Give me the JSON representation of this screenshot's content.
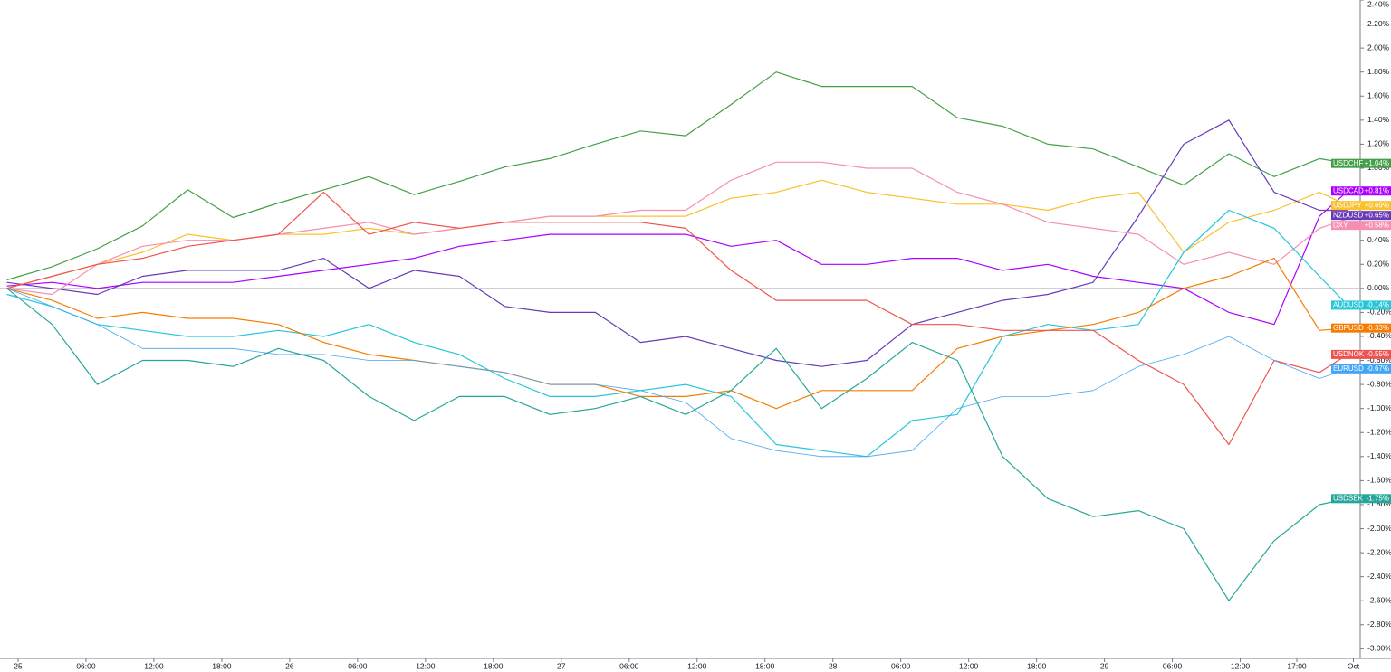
{
  "chart_data": {
    "type": "line",
    "x": [
      -1,
      3,
      7,
      11,
      15,
      19,
      23,
      27,
      31,
      35,
      39,
      43,
      47,
      51,
      55,
      59,
      63,
      67,
      71,
      75,
      79,
      83,
      87,
      91,
      95,
      99,
      103,
      107,
      111,
      115,
      117.5
    ],
    "xlim": [
      -1.6,
      118.6
    ],
    "xticks": [
      {
        "value": 0,
        "label": "25"
      },
      {
        "value": 6,
        "label": "06:00"
      },
      {
        "value": 12,
        "label": "12:00"
      },
      {
        "value": 18,
        "label": "18:00"
      },
      {
        "value": 24,
        "label": "26"
      },
      {
        "value": 30,
        "label": "06:00"
      },
      {
        "value": 36,
        "label": "12:00"
      },
      {
        "value": 42,
        "label": "18:00"
      },
      {
        "value": 48,
        "label": "27"
      },
      {
        "value": 54,
        "label": "06:00"
      },
      {
        "value": 60,
        "label": "12:00"
      },
      {
        "value": 66,
        "label": "18:00"
      },
      {
        "value": 72,
        "label": "28"
      },
      {
        "value": 78,
        "label": "06:00"
      },
      {
        "value": 84,
        "label": "12:00"
      },
      {
        "value": 90,
        "label": "18:00"
      },
      {
        "value": 96,
        "label": "29"
      },
      {
        "value": 102,
        "label": "06:00"
      },
      {
        "value": 108,
        "label": "12:00"
      },
      {
        "value": 113,
        "label": "17:00"
      },
      {
        "value": 118,
        "label": "Oct"
      }
    ],
    "ylim": [
      -3.08,
      2.4
    ],
    "yticks": [
      {
        "value": 2.4,
        "label": "2.40%"
      },
      {
        "value": 2.2,
        "label": "2.20%"
      },
      {
        "value": 2.0,
        "label": "2.00%"
      },
      {
        "value": 1.8,
        "label": "1.80%"
      },
      {
        "value": 1.6,
        "label": "1.60%"
      },
      {
        "value": 1.4,
        "label": "1.40%"
      },
      {
        "value": 1.2,
        "label": "1.20%"
      },
      {
        "value": 1.0,
        "label": "1.00%"
      },
      {
        "value": 0.8,
        "label": "0.80%"
      },
      {
        "value": 0.6,
        "label": "0.60%"
      },
      {
        "value": 0.4,
        "label": "0.40%"
      },
      {
        "value": 0.2,
        "label": "0.20%"
      },
      {
        "value": 0,
        "label": "0.00%"
      },
      {
        "value": -0.2,
        "label": "-0.20%"
      },
      {
        "value": -0.4,
        "label": "-0.40%"
      },
      {
        "value": -0.6,
        "label": "-0.60%"
      },
      {
        "value": -0.8,
        "label": "-0.80%"
      },
      {
        "value": -1.0,
        "label": "-1.00%"
      },
      {
        "value": -1.2,
        "label": "-1.20%"
      },
      {
        "value": -1.4,
        "label": "-1.40%"
      },
      {
        "value": -1.6,
        "label": "-1.60%"
      },
      {
        "value": -1.8,
        "label": "-1.80%"
      },
      {
        "value": -2.0,
        "label": "-2.00%"
      },
      {
        "value": -2.2,
        "label": "-2.20%"
      },
      {
        "value": -2.4,
        "label": "-2.40%"
      },
      {
        "value": -2.6,
        "label": "-2.60%"
      },
      {
        "value": -2.8,
        "label": "-2.80%"
      },
      {
        "value": -3.0,
        "label": "-3.00%"
      }
    ],
    "series": [
      {
        "name": "USDCHF",
        "color": "#43a047",
        "values": [
          0.07,
          0.18,
          0.33,
          0.52,
          0.82,
          0.59,
          0.71,
          0.82,
          0.93,
          0.78,
          0.89,
          1.01,
          1.08,
          1.2,
          1.31,
          1.27,
          1.53,
          1.8,
          1.68,
          1.68,
          1.68,
          1.42,
          1.35,
          1.2,
          1.16,
          1.01,
          0.86,
          1.12,
          0.93,
          1.08,
          1.04
        ],
        "value_labels": [
          null,
          null,
          null,
          null,
          null,
          null,
          null,
          null,
          null,
          null,
          null,
          null,
          null,
          null,
          null,
          null,
          null,
          null,
          null,
          null,
          null,
          null,
          null,
          null,
          null,
          null,
          null,
          null,
          null,
          null,
          "+1.04%"
        ]
      },
      {
        "name": "USDCAD",
        "color": "#aa00ff",
        "values": [
          0.02,
          0.05,
          0.0,
          0.05,
          0.05,
          0.05,
          0.1,
          0.15,
          0.2,
          0.25,
          0.35,
          0.4,
          0.45,
          0.45,
          0.45,
          0.45,
          0.35,
          0.4,
          0.2,
          0.2,
          0.25,
          0.25,
          0.15,
          0.2,
          0.1,
          0.05,
          0.0,
          -0.2,
          -0.3,
          0.6,
          0.81
        ],
        "value_labels": [
          null,
          null,
          null,
          null,
          null,
          null,
          null,
          null,
          null,
          null,
          null,
          null,
          null,
          null,
          null,
          null,
          null,
          null,
          null,
          null,
          null,
          null,
          null,
          null,
          null,
          null,
          null,
          null,
          null,
          null,
          "+0.81%"
        ]
      },
      {
        "name": "USDJPY",
        "color": "#fbc02d",
        "values": [
          0.0,
          0.1,
          0.2,
          0.3,
          0.45,
          0.4,
          0.45,
          0.45,
          0.5,
          0.45,
          0.5,
          0.55,
          0.6,
          0.6,
          0.6,
          0.6,
          0.75,
          0.8,
          0.9,
          0.8,
          0.75,
          0.7,
          0.7,
          0.65,
          0.75,
          0.8,
          0.3,
          0.55,
          0.65,
          0.8,
          0.69
        ],
        "value_labels": [
          null,
          null,
          null,
          null,
          null,
          null,
          null,
          null,
          null,
          null,
          null,
          null,
          null,
          null,
          null,
          null,
          null,
          null,
          null,
          null,
          null,
          null,
          null,
          null,
          null,
          null,
          null,
          null,
          null,
          null,
          "+0.69%"
        ]
      },
      {
        "name": "NZDUSD",
        "color": "#673ab7",
        "values": [
          0.05,
          0.0,
          -0.05,
          0.1,
          0.15,
          0.15,
          0.15,
          0.25,
          0.0,
          0.15,
          0.1,
          -0.15,
          -0.2,
          -0.2,
          -0.45,
          -0.4,
          -0.5,
          -0.6,
          -0.65,
          -0.6,
          -0.3,
          -0.2,
          -0.1,
          -0.05,
          0.05,
          0.6,
          1.2,
          1.4,
          0.8,
          0.65,
          0.65
        ],
        "value_labels": [
          null,
          null,
          null,
          null,
          null,
          null,
          null,
          null,
          null,
          null,
          null,
          null,
          null,
          null,
          null,
          null,
          null,
          null,
          null,
          null,
          null,
          null,
          null,
          null,
          null,
          null,
          null,
          null,
          null,
          null,
          "+0.65%"
        ]
      },
      {
        "name": "DXY",
        "color": "#f48fb1",
        "values": [
          0.0,
          -0.05,
          0.2,
          0.35,
          0.4,
          0.4,
          0.45,
          0.5,
          0.55,
          0.45,
          0.5,
          0.55,
          0.6,
          0.6,
          0.65,
          0.65,
          0.9,
          1.05,
          1.05,
          1.0,
          1.0,
          0.8,
          0.7,
          0.55,
          0.5,
          0.45,
          0.2,
          0.3,
          0.2,
          0.5,
          0.58
        ],
        "value_labels": [
          null,
          null,
          null,
          null,
          null,
          null,
          null,
          null,
          null,
          null,
          null,
          null,
          null,
          null,
          null,
          null,
          null,
          null,
          null,
          null,
          null,
          null,
          null,
          null,
          null,
          null,
          null,
          null,
          null,
          null,
          "+0.58%"
        ]
      },
      {
        "name": "AUDUSD",
        "color": "#26c6da",
        "values": [
          -0.05,
          -0.15,
          -0.3,
          -0.35,
          -0.4,
          -0.4,
          -0.35,
          -0.4,
          -0.3,
          -0.45,
          -0.55,
          -0.75,
          -0.9,
          -0.9,
          -0.85,
          -0.8,
          -0.9,
          -1.3,
          -1.35,
          -1.4,
          -1.1,
          -1.05,
          -0.4,
          -0.3,
          -0.35,
          -0.3,
          0.3,
          0.65,
          0.5,
          0.1,
          -0.14
        ],
        "value_labels": [
          null,
          null,
          null,
          null,
          null,
          null,
          null,
          null,
          null,
          null,
          null,
          null,
          null,
          null,
          null,
          null,
          null,
          null,
          null,
          null,
          null,
          null,
          null,
          null,
          null,
          null,
          null,
          null,
          null,
          null,
          "-0.14%"
        ]
      },
      {
        "name": "GBPUSD",
        "color": "#f57c00",
        "values": [
          0.0,
          -0.1,
          -0.25,
          -0.2,
          -0.25,
          -0.25,
          -0.3,
          -0.45,
          -0.55,
          -0.6,
          -0.65,
          -0.7,
          -0.8,
          -0.8,
          -0.9,
          -0.9,
          -0.85,
          -1.0,
          -0.85,
          -0.85,
          -0.85,
          -0.5,
          -0.4,
          -0.35,
          -0.3,
          -0.2,
          0.0,
          0.1,
          0.25,
          -0.35,
          -0.33
        ],
        "value_labels": [
          null,
          null,
          null,
          null,
          null,
          null,
          null,
          null,
          null,
          null,
          null,
          null,
          null,
          null,
          null,
          null,
          null,
          null,
          null,
          null,
          null,
          null,
          null,
          null,
          null,
          null,
          null,
          null,
          null,
          null,
          "-0.33%"
        ]
      },
      {
        "name": "USDNOK",
        "color": "#ef5350",
        "values": [
          0.0,
          0.1,
          0.2,
          0.25,
          0.35,
          0.4,
          0.45,
          0.8,
          0.45,
          0.55,
          0.5,
          0.55,
          0.55,
          0.55,
          0.55,
          0.5,
          0.15,
          -0.1,
          -0.1,
          -0.1,
          -0.3,
          -0.3,
          -0.35,
          -0.35,
          -0.35,
          -0.6,
          -0.8,
          -1.3,
          -0.6,
          -0.7,
          -0.55
        ],
        "value_labels": [
          null,
          null,
          null,
          null,
          null,
          null,
          null,
          null,
          null,
          null,
          null,
          null,
          null,
          null,
          null,
          null,
          null,
          null,
          null,
          null,
          null,
          null,
          null,
          null,
          null,
          null,
          null,
          null,
          null,
          null,
          "-0.55%"
        ]
      },
      {
        "name": "EURUSD",
        "color": "#42a5f5",
        "values": [
          0.0,
          -0.15,
          -0.3,
          -0.5,
          -0.5,
          -0.5,
          -0.55,
          -0.55,
          -0.6,
          -0.6,
          -0.65,
          -0.7,
          -0.8,
          -0.8,
          -0.85,
          -0.95,
          -1.25,
          -1.35,
          -1.4,
          -1.4,
          -1.35,
          -1.0,
          -0.9,
          -0.9,
          -0.85,
          -0.65,
          -0.55,
          -0.4,
          -0.6,
          -0.75,
          -0.67
        ],
        "value_labels": [
          null,
          null,
          null,
          null,
          null,
          null,
          null,
          null,
          null,
          null,
          null,
          null,
          null,
          null,
          null,
          null,
          null,
          null,
          null,
          null,
          null,
          null,
          null,
          null,
          null,
          null,
          null,
          null,
          null,
          null,
          "-0.67%"
        ]
      },
      {
        "name": "USDSEK",
        "color": "#26a69a",
        "values": [
          0.0,
          -0.3,
          -0.8,
          -0.6,
          -0.6,
          -0.65,
          -0.5,
          -0.6,
          -0.9,
          -1.1,
          -0.9,
          -0.9,
          -1.05,
          -1.0,
          -0.9,
          -1.05,
          -0.85,
          -0.5,
          -1.0,
          -0.75,
          -0.45,
          -0.6,
          -1.4,
          -1.75,
          -1.9,
          -1.85,
          -2.0,
          -2.6,
          -2.1,
          -1.8,
          -1.75
        ],
        "value_labels": [
          null,
          null,
          null,
          null,
          null,
          null,
          null,
          null,
          null,
          null,
          null,
          null,
          null,
          null,
          null,
          null,
          null,
          null,
          null,
          null,
          null,
          null,
          null,
          null,
          null,
          null,
          null,
          null,
          null,
          null,
          "-1.75%"
        ]
      }
    ]
  }
}
